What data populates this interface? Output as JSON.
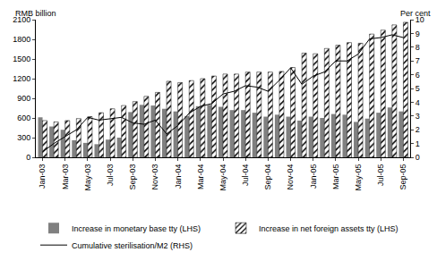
{
  "chart_data": {
    "type": "bar",
    "y_label": "RMB billion",
    "y2_label": "Per cent",
    "categories": [
      "Jan-03",
      null,
      "Mar-03",
      null,
      "May-03",
      null,
      "Jul-03",
      null,
      "Sep-03",
      null,
      "Nov-03",
      null,
      "Jan-04",
      null,
      "Mar-04",
      null,
      "May-04",
      null,
      "Jul-04",
      null,
      "Sep-04",
      null,
      "Nov-04",
      null,
      "Jan-05",
      null,
      "Mar-05",
      null,
      "May-05",
      null,
      "Jul-05",
      null,
      "Sep-05"
    ],
    "series": [
      {
        "name": "Increase in monetary base tty (LHS)",
        "type": "bar",
        "color": "#808080",
        "marker": "solid",
        "values": [
          610,
          470,
          420,
          260,
          220,
          200,
          270,
          300,
          690,
          800,
          790,
          740,
          700,
          630,
          780,
          800,
          770,
          720,
          720,
          680,
          620,
          650,
          620,
          560,
          620,
          600,
          660,
          650,
          540,
          590,
          680,
          760,
          700
        ]
      },
      {
        "name": "Increase in net foreign assets tty (LHS)",
        "type": "bar",
        "color": "#000000",
        "marker": "hatched",
        "values": [
          560,
          540,
          560,
          590,
          620,
          680,
          740,
          790,
          850,
          930,
          990,
          1160,
          1140,
          1170,
          1200,
          1240,
          1270,
          1270,
          1300,
          1300,
          1300,
          1310,
          1370,
          1590,
          1580,
          1660,
          1710,
          1750,
          1740,
          1880,
          1940,
          2020,
          2060
        ]
      },
      {
        "name": "Cumulative sterilisation/M2 (RHS)",
        "type": "line",
        "axis": "y2",
        "color": "#000000",
        "line_style": "solid",
        "values": [
          0.4,
          1.0,
          1.5,
          2.0,
          2.9,
          2.7,
          2.8,
          2.9,
          2.5,
          2.4,
          2.7,
          1.7,
          2.3,
          3.2,
          3.7,
          3.9,
          4.6,
          4.8,
          5.2,
          5.1,
          4.8,
          5.6,
          6.5,
          5.3,
          5.9,
          6.2,
          7.0,
          7.0,
          7.5,
          8.6,
          8.7,
          8.9,
          8.7
        ]
      }
    ],
    "ylim": [
      0,
      2100
    ],
    "yticks": [
      0,
      300,
      600,
      900,
      1200,
      1500,
      1800,
      2100
    ],
    "y2lim": [
      0,
      10
    ],
    "y2ticks": [
      0,
      1,
      2,
      3,
      4,
      5,
      6,
      7,
      8,
      9,
      10
    ],
    "grid": false,
    "legend": "bottom"
  }
}
